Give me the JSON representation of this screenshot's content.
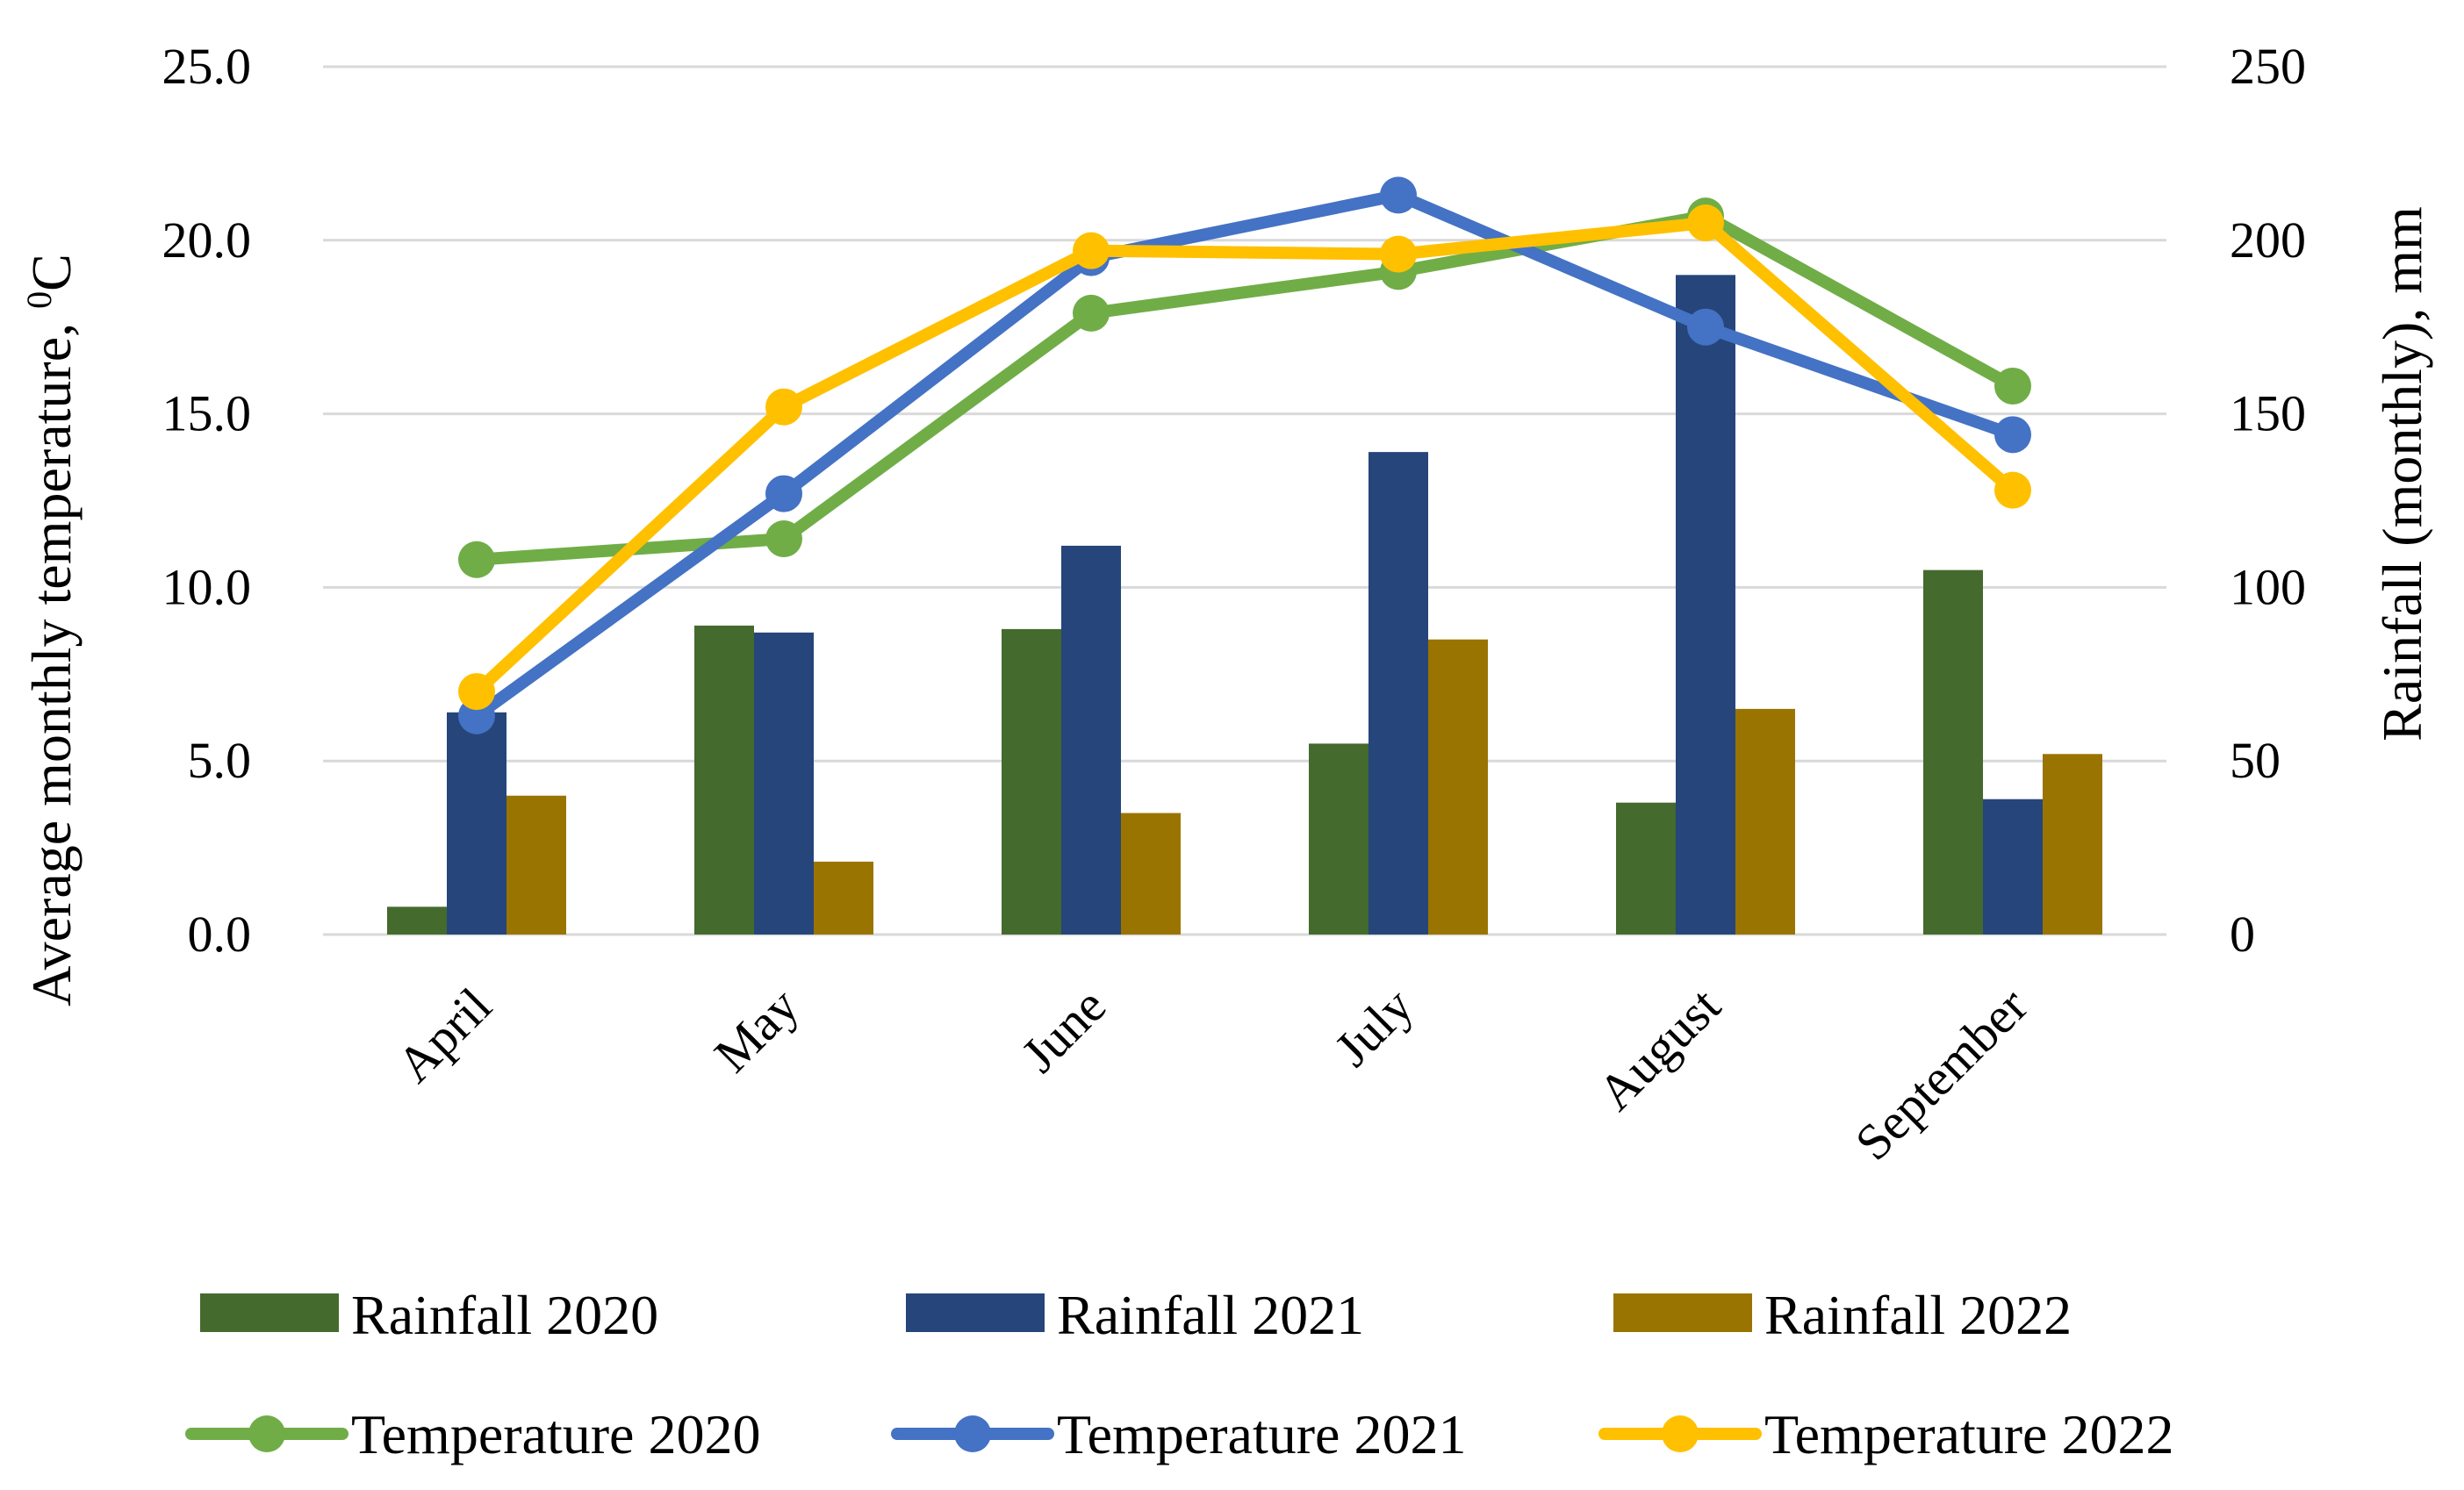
{
  "chart_data": {
    "type": "bar",
    "categories": [
      "April",
      "May",
      "June",
      "July",
      "August",
      "September"
    ],
    "y_left": {
      "label_main": "Average monthly temperature, ",
      "label_sup": "0",
      "label_unit": "C",
      "range": [
        0,
        25
      ],
      "ticks": [
        "0.0",
        "5.0",
        "10.0",
        "15.0",
        "20.0",
        "25.0"
      ]
    },
    "y_right": {
      "label": "Rainfall (monthly), mm",
      "range": [
        0,
        250
      ],
      "ticks": [
        "0",
        "50",
        "100",
        "150",
        "200",
        "250"
      ]
    },
    "grid": true,
    "legend_position": "bottom",
    "bar_series": [
      {
        "name": "Rainfall 2020",
        "axis": "right",
        "color": "#446a2e",
        "values": [
          8,
          89,
          88,
          55,
          38,
          105
        ]
      },
      {
        "name": "Rainfall 2021",
        "axis": "right",
        "color": "#26457a",
        "values": [
          64,
          87,
          112,
          139,
          190,
          39
        ]
      },
      {
        "name": "Rainfall 2022",
        "axis": "right",
        "color": "#9a7400",
        "values": [
          40,
          21,
          35,
          85,
          65,
          52
        ]
      }
    ],
    "line_series": [
      {
        "name": "Temperature 2020",
        "axis": "left",
        "color": "#70ad47",
        "values": [
          10.8,
          11.4,
          17.9,
          19.1,
          20.7,
          15.8
        ]
      },
      {
        "name": "Temperature 2021",
        "axis": "left",
        "color": "#4472c4",
        "values": [
          6.3,
          12.7,
          19.5,
          21.3,
          17.5,
          14.4
        ]
      },
      {
        "name": "Temperature 2022",
        "axis": "left",
        "color": "#ffc000",
        "values": [
          7.0,
          15.2,
          19.7,
          19.6,
          20.5,
          12.8
        ]
      }
    ]
  }
}
